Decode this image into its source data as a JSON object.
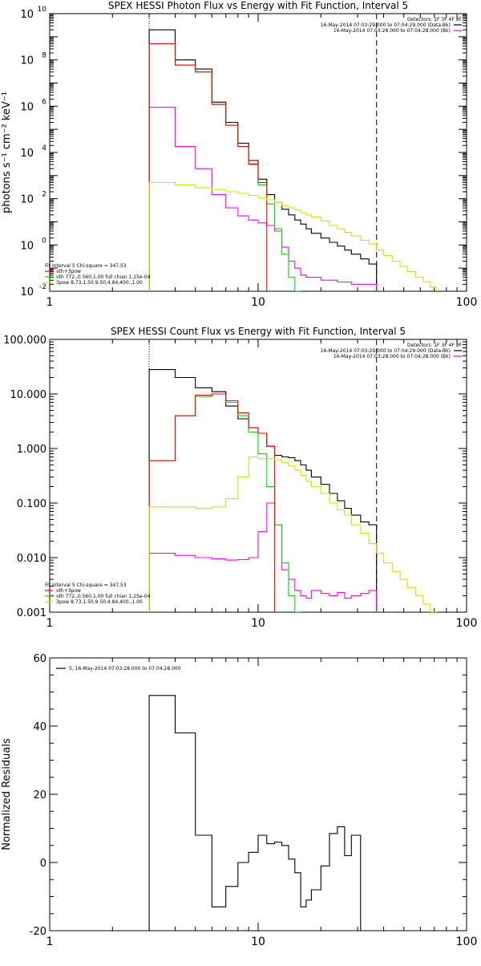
{
  "chart_data": [
    {
      "type": "line",
      "title": "SPEX HESSI Photon Flux vs Energy with Fit Function, Interval 5",
      "xlabel": "",
      "ylabel": "photons s⁻¹ cm⁻² keV⁻¹",
      "xscale": "log",
      "yscale": "log",
      "xlim": [
        1,
        100
      ],
      "ylim": [
        0.01,
        10000000000.0
      ],
      "xticks": [
        {
          "value": 1,
          "label": "1"
        },
        {
          "value": 10,
          "label": "10"
        },
        {
          "value": 100,
          "label": "100"
        }
      ],
      "yticks": [
        {
          "value": 10000000000.0,
          "base": "10",
          "exp": "10"
        },
        {
          "value": 100000000.0,
          "base": "10",
          "exp": "8"
        },
        {
          "value": 1000000.0,
          "base": "10",
          "exp": "6"
        },
        {
          "value": 10000.0,
          "base": "10",
          "exp": "4"
        },
        {
          "value": 100.0,
          "base": "10",
          "exp": "2"
        },
        {
          "value": 1,
          "base": "10",
          "exp": "0"
        },
        {
          "value": 0.01,
          "base": "10",
          "exp": "-2"
        }
      ],
      "vlines": [
        {
          "x": 3,
          "style": "dotted",
          "color": "#000000"
        },
        {
          "x": 37,
          "style": "dashed",
          "color": "#000000"
        }
      ],
      "legend_top": {
        "header": "Detectors: 1F 3F 4F 8F",
        "entries": [
          {
            "label": "16-May-2014 07:03:29.000 to 07:04:29.000 (Data-Bk)",
            "color": "#000000"
          },
          {
            "label": "16-May-2014 07:03:28.000 to 07:04:28.000 (Bk)",
            "color": "#ff00ff"
          }
        ]
      },
      "legend_bottom": {
        "header": "Fit Interval  5    Chi-square = 347.53",
        "entries": [
          {
            "label": "vth+3pow",
            "color": "#ff0000"
          },
          {
            "label": "vth 772.,0.560,1.00  full chian 1.25e-04",
            "color": "#00dd00"
          },
          {
            "label": "3pow 8.73,1.50,9.50,4.84,400.,1.00",
            "color": "#dddd00"
          }
        ]
      },
      "edges": [
        3,
        4,
        5,
        6,
        7,
        8,
        9,
        10,
        11,
        12,
        13,
        14,
        15,
        16,
        17,
        18,
        20,
        22,
        24,
        26,
        28,
        31,
        34,
        37,
        40,
        44,
        48,
        52,
        57,
        62,
        67,
        72
      ],
      "series": [
        {
          "color": "#000000",
          "values": [
            2000000000.0,
            100000000.0,
            40000000.0,
            1500000.0,
            200000.0,
            25000.0,
            4500,
            700,
            150,
            70,
            35,
            20,
            12,
            8,
            5,
            3.2,
            2,
            1.3,
            0.9,
            0.6,
            0.4,
            0.25,
            0.15
          ]
        },
        {
          "color": "#ff00ff",
          "values": [
            900000.0,
            18000.0,
            2000,
            150,
            40,
            18,
            12,
            9,
            7,
            4,
            0.8,
            0.2,
            0.1,
            0.05,
            0.04,
            0.04,
            0.03,
            0.03,
            0.025,
            0.025,
            0.02,
            0.02,
            0.02
          ]
        },
        {
          "color": "#00dd00",
          "values": [
            500000000.0,
            60000000.0,
            30000000.0,
            1200000.0,
            150000.0,
            18000.0,
            3000,
            400,
            60,
            5,
            0.4,
            0.04,
            0.01
          ]
        },
        {
          "color": "#ff0000",
          "values": [
            500000000.0,
            60000000.0,
            30000000.0,
            1200000.0,
            150000.0,
            18000.0,
            3200,
            500
          ]
        },
        {
          "color": "#dddd00",
          "values": [
            500,
            400,
            300,
            250,
            200,
            170,
            140,
            110,
            90,
            70,
            50,
            40,
            32,
            25,
            20,
            16,
            11,
            7,
            5,
            3.5,
            2.5,
            1.6,
            1.1,
            0.6,
            0.35,
            0.2,
            0.12,
            0.07,
            0.04,
            0.025,
            0.015
          ]
        }
      ]
    },
    {
      "type": "line",
      "title": "SPEX HESSI Count Flux vs Energy with Fit Function, Interval 5",
      "xlabel": "",
      "ylabel": "",
      "xscale": "log",
      "yscale": "log",
      "xlim": [
        1,
        100
      ],
      "ylim": [
        0.001,
        100
      ],
      "xticks": [
        {
          "value": 1,
          "label": "1"
        },
        {
          "value": 10,
          "label": "10"
        },
        {
          "value": 100,
          "label": "100"
        }
      ],
      "yticks": [
        {
          "value": 100,
          "label": "100.000"
        },
        {
          "value": 10,
          "label": "10.000"
        },
        {
          "value": 1,
          "label": "1.000"
        },
        {
          "value": 0.1,
          "label": "0.100"
        },
        {
          "value": 0.01,
          "label": "0.010"
        },
        {
          "value": 0.001,
          "label": "0.001"
        }
      ],
      "vlines": [
        {
          "x": 3,
          "style": "dotted",
          "color": "#000000"
        },
        {
          "x": 37,
          "style": "dashed",
          "color": "#000000"
        }
      ],
      "legend_top": {
        "header": "Detectors: 1F 3F 4F 8F",
        "entries": [
          {
            "label": "16-May-2014 07:03:29.000 to 07:04:29.000 (Data-Bk)",
            "color": "#000000"
          },
          {
            "label": "16-May-2014 07:03:28.000 to 07:04:28.000 (Bk)",
            "color": "#ff00ff"
          }
        ]
      },
      "legend_bottom": {
        "header": "Fit Interval  5    Chi-square = 347.53",
        "entries": [
          {
            "label": "vth+3pow",
            "color": "#ff0000"
          },
          {
            "label": "vth 772.,0.560,1.00  full chian 1.25e-04",
            "color": "#00dd00"
          },
          {
            "label": "3pow 8.73,1.50,9.50,4.84,400.,1.00",
            "color": "#dddd00"
          }
        ]
      },
      "edges": [
        3,
        4,
        5,
        6,
        7,
        8,
        9,
        10,
        11,
        12,
        13,
        14,
        15,
        16,
        17,
        18,
        20,
        22,
        24,
        26,
        28,
        31,
        34,
        37,
        40,
        44,
        48,
        52,
        57,
        62,
        67,
        72
      ],
      "series": [
        {
          "color": "#000000",
          "values": [
            28,
            20,
            13,
            11,
            6,
            3.5,
            2.4,
            1.9,
            1.1,
            0.75,
            0.7,
            0.68,
            0.6,
            0.5,
            0.4,
            0.3,
            0.22,
            0.15,
            0.11,
            0.08,
            0.06,
            0.045,
            0.04
          ]
        },
        {
          "color": "#ff00ff",
          "values": [
            0.012,
            0.011,
            0.01,
            0.0095,
            0.009,
            0.0092,
            0.01,
            0.03,
            0.1,
            0.04,
            0.006,
            0.004,
            0.0025,
            0.002,
            0.0018,
            0.0025,
            0.0022,
            0.002,
            0.0023,
            0.0018,
            0.002,
            0.0022,
            0.0025
          ]
        },
        {
          "color": "#00dd00",
          "values": [
            0.6,
            4,
            9,
            10,
            7,
            4,
            2,
            0.8,
            0.2,
            0.04,
            0.008,
            0.002,
            0.0008
          ]
        },
        {
          "color": "#ff0000",
          "values": [
            0.6,
            4,
            9.5,
            10,
            7.5,
            4.5,
            2.4,
            1.9,
            1.1
          ]
        },
        {
          "color": "#dddd00",
          "values": [
            0.085,
            0.085,
            0.08,
            0.085,
            0.12,
            0.3,
            0.7,
            0.65,
            0.65,
            0.62,
            0.55,
            0.48,
            0.4,
            0.32,
            0.25,
            0.2,
            0.15,
            0.1,
            0.075,
            0.06,
            0.04,
            0.028,
            0.018,
            0.012,
            0.008,
            0.0055,
            0.004,
            0.0028,
            0.002,
            0.0014,
            0.001
          ]
        }
      ]
    },
    {
      "type": "line",
      "title": "",
      "xlabel": "",
      "ylabel": "Normalized Residuals",
      "xscale": "log",
      "yscale": "linear",
      "xlim": [
        1,
        100
      ],
      "ylim": [
        -20,
        60
      ],
      "xticks": [
        {
          "value": 1,
          "label": "1"
        },
        {
          "value": 10,
          "label": "10"
        },
        {
          "value": 100,
          "label": "100"
        }
      ],
      "yticks": [
        {
          "value": 60,
          "label": "60"
        },
        {
          "value": 40,
          "label": "40"
        },
        {
          "value": 20,
          "label": "20"
        },
        {
          "value": 0,
          "label": "0"
        },
        {
          "value": -20,
          "label": "-20"
        }
      ],
      "vlines": [],
      "legend_top": {
        "header": "",
        "entries": [
          {
            "label": "5, 16-May-2014 07:03:28.000 to 07:04:28.000",
            "color": "#000000"
          }
        ]
      },
      "legend_bottom": {
        "header": "",
        "entries": []
      },
      "edges": [
        3,
        4,
        5,
        6,
        7,
        8,
        9,
        10,
        11,
        12,
        13,
        14,
        15,
        16,
        17,
        18,
        20,
        22,
        24,
        26,
        28,
        31,
        34,
        37
      ],
      "series": [
        {
          "color": "#000000",
          "values": [
            49,
            38,
            8,
            -13,
            -7,
            0,
            3,
            8,
            5.5,
            6,
            5,
            1,
            -3,
            -13,
            -11,
            -8,
            -1,
            8.5,
            10.5,
            2,
            8
          ]
        }
      ]
    }
  ]
}
